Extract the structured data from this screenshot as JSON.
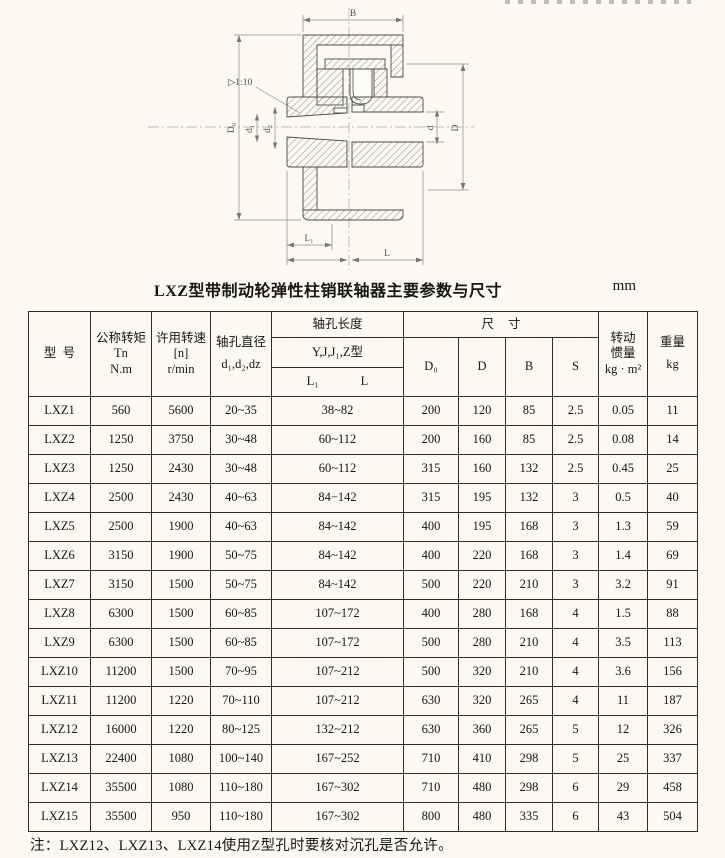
{
  "page": {
    "table_title": "LXZ型带制动轮弹性柱销联轴器主要参数与尺寸",
    "unit_label": "mm",
    "footnote": "注：LXZ12、LXZ13、LXZ14使用Z型孔时要核对沉孔是否允许。"
  },
  "drawing": {
    "labels": {
      "b": "B",
      "taper": "▷1:10",
      "d0": "D₀",
      "d1": "d₁",
      "d2": "d₂",
      "d": "d",
      "D": "D",
      "l1": "L₁",
      "l": "L"
    }
  },
  "table": {
    "headers": {
      "model": "型  号",
      "torque_line1": "公称转矩Tn",
      "torque_line2": "N.m",
      "speed_line1": "许用转速",
      "speed_line2": "[n]",
      "speed_line3": "r/min",
      "bore_dia_line1": "轴孔直径",
      "bore_dia_line2": "d₁,d₂,dz",
      "bore_len": "轴孔长度",
      "bore_len_types": "Y,J,J₁,Z型",
      "bore_len_l1": "L₁",
      "bore_len_l": "L",
      "dims": "尺寸",
      "d0": "D₀",
      "d": "D",
      "b": "B",
      "s": "S",
      "inertia_line1": "转动",
      "inertia_line2": "惯量",
      "inertia_line3": "kg · m²",
      "weight_line1": "重量",
      "weight_line2": "kg"
    },
    "rows": [
      [
        "LXZ1",
        "560",
        "5600",
        "20~35",
        "38~82",
        "200",
        "120",
        "85",
        "2.5",
        "0.05",
        "11"
      ],
      [
        "LXZ2",
        "1250",
        "3750",
        "30~48",
        "60~112",
        "200",
        "160",
        "85",
        "2.5",
        "0.08",
        "14"
      ],
      [
        "LXZ3",
        "1250",
        "2430",
        "30~48",
        "60~112",
        "315",
        "160",
        "132",
        "2.5",
        "0.45",
        "25"
      ],
      [
        "LXZ4",
        "2500",
        "2430",
        "40~63",
        "84−142",
        "315",
        "195",
        "132",
        "3",
        "0.5",
        "40"
      ],
      [
        "LXZ5",
        "2500",
        "1900",
        "40~63",
        "84~142",
        "400",
        "195",
        "168",
        "3",
        "1.3",
        "59"
      ],
      [
        "LXZ6",
        "3150",
        "1900",
        "50~75",
        "84~142",
        "400",
        "220",
        "168",
        "3",
        "1.4",
        "69"
      ],
      [
        "LXZ7",
        "3150",
        "1500",
        "50~75",
        "84~142",
        "500",
        "220",
        "210",
        "3",
        "3.2",
        "91"
      ],
      [
        "LXZ8",
        "6300",
        "1500",
        "60~85",
        "107~172",
        "400",
        "280",
        "168",
        "4",
        "1.5",
        "88"
      ],
      [
        "LXZ9",
        "6300",
        "1500",
        "60~85",
        "107~172",
        "500",
        "280",
        "210",
        "4",
        "3.5",
        "113"
      ],
      [
        "LXZ10",
        "11200",
        "1500",
        "70~95",
        "107~212",
        "500",
        "320",
        "210",
        "4",
        "3.6",
        "156"
      ],
      [
        "LXZ11",
        "11200",
        "1220",
        "70~110",
        "107~212",
        "630",
        "320",
        "265",
        "4",
        "11",
        "187"
      ],
      [
        "LXZ12",
        "16000",
        "1220",
        "80~125",
        "132~212",
        "630",
        "360",
        "265",
        "5",
        "12",
        "326"
      ],
      [
        "LXZ13",
        "22400",
        "1080",
        "100~140",
        "167~252",
        "710",
        "410",
        "298",
        "5",
        "25",
        "337"
      ],
      [
        "LXZ14",
        "35500",
        "1080",
        "110~180",
        "167~302",
        "710",
        "480",
        "298",
        "6",
        "29",
        "458"
      ],
      [
        "LXZ15",
        "35500",
        "950",
        "110~180",
        "167~302",
        "800",
        "480",
        "335",
        "6",
        "43",
        "504"
      ]
    ]
  }
}
